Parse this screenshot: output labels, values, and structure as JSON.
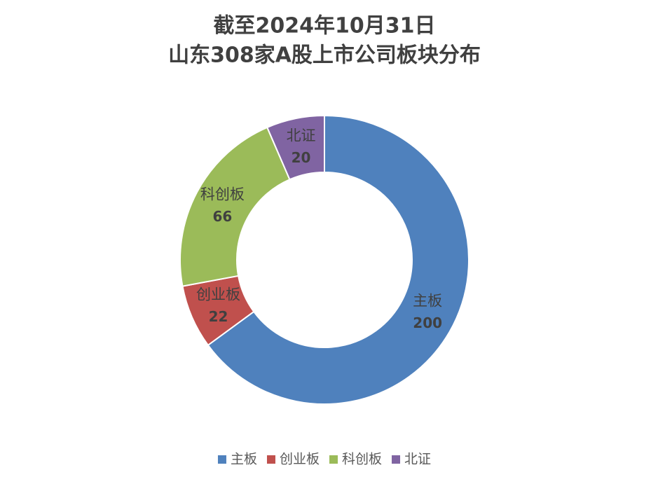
{
  "chart_data": {
    "type": "donut",
    "title": [
      "截至2024年10月31日",
      "山东308家A股上市公司板块分布"
    ],
    "categories": [
      "主板",
      "创业板",
      "科创板",
      "北证"
    ],
    "values": [
      200,
      22,
      66,
      20
    ],
    "colors": [
      "#4f81bd",
      "#c0504d",
      "#9bbb59",
      "#8064a2"
    ],
    "legend": "bottom"
  }
}
